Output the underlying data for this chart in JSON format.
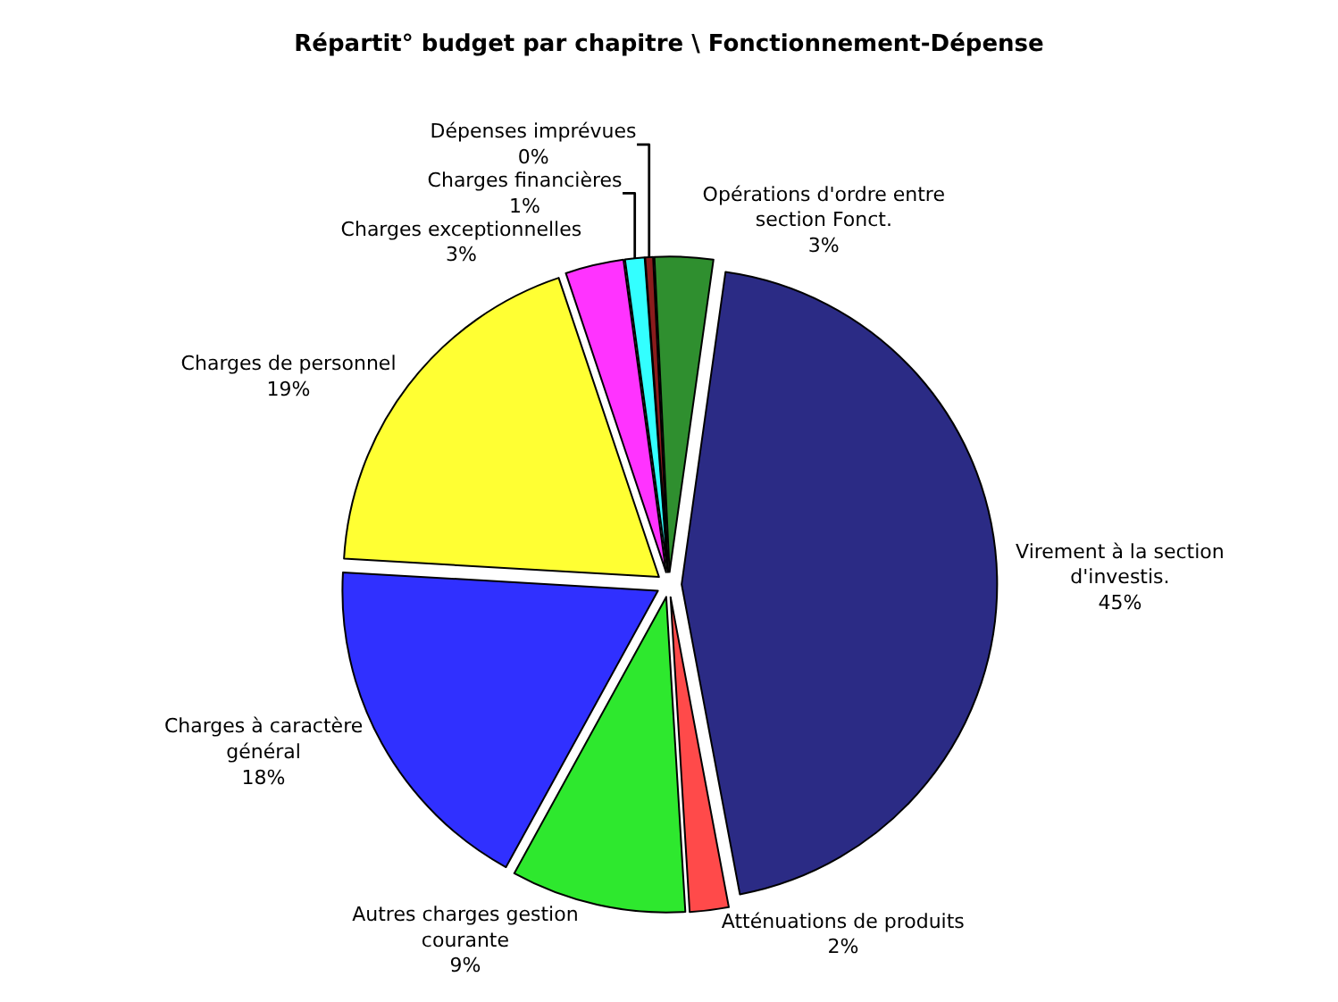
{
  "chart_data": {
    "type": "pie",
    "title": "Répartit° budget par chapitre \\ Fonctionnement-Dépense",
    "categories": [
      "Virement à la section d'investis.",
      "Atténuations de produits",
      "Autres charges gestion courante",
      "Charges à caractère général",
      "Charges de personnel",
      "Charges exceptionnelles",
      "Charges financières",
      "Dépenses imprévues",
      "Opérations d'ordre entre section Fonct."
    ],
    "values": [
      45,
      2,
      9,
      18,
      19,
      3,
      1,
      0.4,
      3
    ],
    "colors": [
      "#2b2b85",
      "#ff4a4a",
      "#2ee82e",
      "#3030ff",
      "#ffff33",
      "#ff33ff",
      "#33ffff",
      "#8b1c1c",
      "#2f8f2f"
    ],
    "value_labels": [
      "45%",
      "2%",
      "9%",
      "18%",
      "19%",
      "3%",
      "1%",
      "0%",
      "3%"
    ]
  }
}
